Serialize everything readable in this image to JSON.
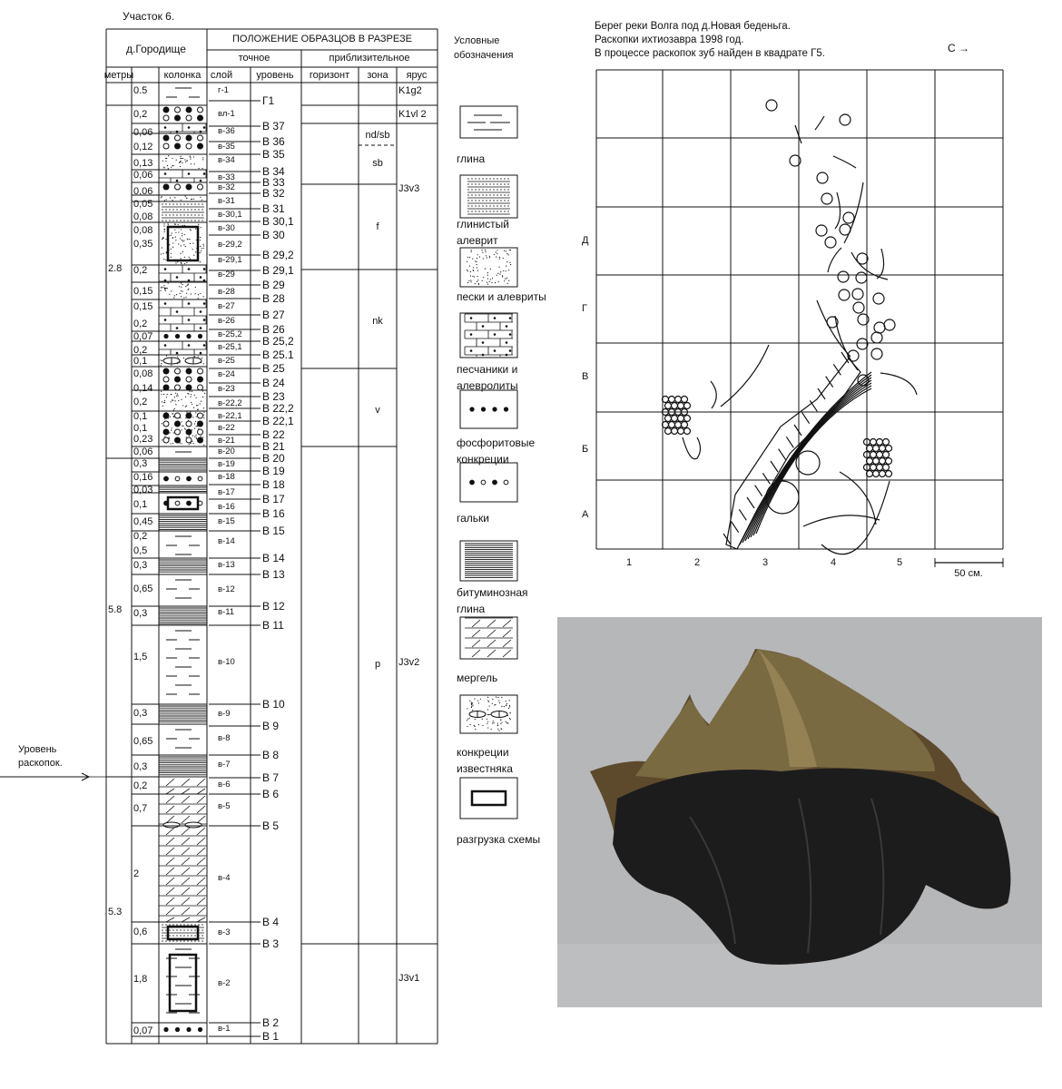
{
  "section_title": "Участок 6.",
  "table": {
    "locality": "д.Городище",
    "header_main": "ПОЛОЖЕНИЕ ОБРАЗЦОВ В РАЗРЕЗЕ",
    "header_exact": "точное",
    "header_approx": "приблизительное",
    "columns": [
      "метры",
      "колонка",
      "слой",
      "уровень",
      "горизонт",
      "зона",
      "ярус"
    ],
    "metre_groups": [
      "2.8",
      "5.8",
      "5.3"
    ],
    "thickness": [
      "0.5",
      "0,2",
      "0,06",
      "0,12",
      "0,13",
      "0,06",
      "0,06",
      "0,05",
      "0,08",
      "0,08",
      "0,35",
      "0,2",
      "0,15",
      "0,15",
      "0,2",
      "0,07",
      "0,2",
      "0,1",
      "0,08",
      "0,14",
      "0,2",
      "0,1",
      "0,1",
      "0,23",
      "0,06",
      "0,3",
      "0,16",
      "0,03",
      "0,1",
      "0,45",
      "0,2",
      "0,5",
      "0,3",
      "0,65",
      "0,3",
      "1,5",
      "0,3",
      "0,65",
      "0,3",
      "0,2",
      "0,7",
      "2",
      "0,6",
      "1,8",
      "0,07"
    ],
    "layers": [
      "г-1",
      "вл-1",
      "в-36",
      "в-35",
      "в-34",
      "в-33",
      "в-32",
      "в-31",
      "в-30,1",
      "в-30",
      "в-29,2",
      "в-29,1",
      "в-29",
      "в-28",
      "в-27",
      "в-26",
      "в-25,2",
      "в-25,1",
      "в-25",
      "в-24",
      "в-23",
      "в-22,2",
      "в-22,1",
      "в-22",
      "в-21",
      "в-20",
      "в-19",
      "в-18",
      "в-17",
      "в-16",
      "в-15",
      "в-14",
      "в-13",
      "в-12",
      "в-11",
      "в-10",
      "в-9",
      "в-8",
      "в-7",
      "в-6",
      "в-5",
      "в-4",
      "в-3",
      "в-2",
      "в-1"
    ],
    "levels": [
      "Г1",
      "В 37",
      "В 36",
      "В 35",
      "В 34",
      "В 33",
      "В 32",
      "В 31",
      "В 30,1",
      "В 30",
      "В 29,2",
      "В 29,1",
      "В 29",
      "В 28",
      "В 27",
      "В 26",
      "В 25,2",
      "В 25.1",
      "В 25",
      "В 24",
      "В 23",
      "В 22,2",
      "В 22,1",
      "В 22",
      "В 21",
      "В 20",
      "В 19",
      "В 18",
      "В 17",
      "В 16",
      "В 15",
      "В 14",
      "В 13",
      "В 12",
      "В 11",
      "В 10",
      "В 9",
      "В 8",
      "В 7",
      "В 6",
      "В 5",
      "В 4",
      "В 3",
      "В 2",
      "В 1"
    ],
    "zones": [
      "nd/sb",
      "sb",
      "f",
      "nk",
      "v",
      "p"
    ],
    "stages": [
      "K1g2",
      "K1vl 2",
      "J3v3",
      "J3v2",
      "J3v1"
    ]
  },
  "excavation_level_label": "Уровень раскопок.",
  "legend": {
    "title": "Условные обозначения",
    "items": [
      "глина",
      "глинистый алеврит",
      "пески и алевриты",
      "песчаники и алевролиты",
      "фосфоритовые конкреции",
      "гальки",
      "битуминозная глина",
      "мергель",
      "конкреции известняка",
      "разгрузка схемы"
    ]
  },
  "map": {
    "lines": [
      "Берег реки Волга под д.Новая беденьга.",
      "Раскопки ихтиозавра 1998 год.",
      "В процессе раскопок зуб найден в квадрате Г5."
    ],
    "north": "С →",
    "rows": [
      "Д",
      "Г",
      "В",
      "Б",
      "А"
    ],
    "cols": [
      "1",
      "2",
      "3",
      "4",
      "5"
    ],
    "scale": "50 см."
  }
}
